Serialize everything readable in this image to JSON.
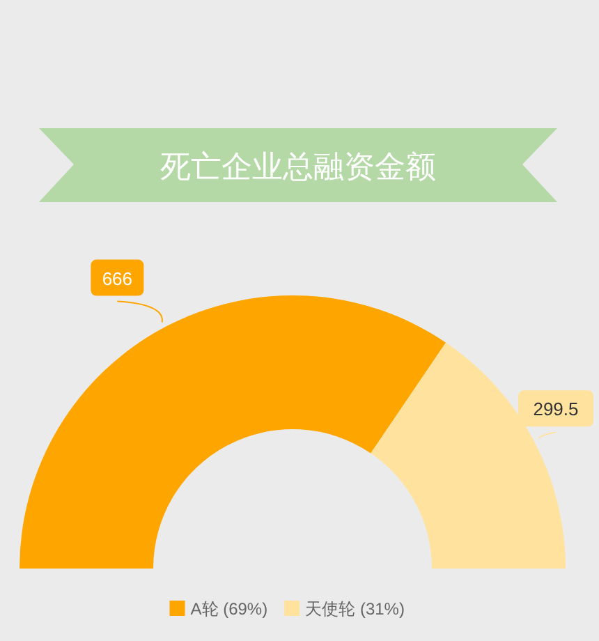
{
  "chart_data": {
    "type": "donut",
    "title": "死亡企业总融资金额",
    "categories": [
      "A轮 (69%)",
      "天使轮 (31%)"
    ],
    "values": [
      666,
      299.5
    ],
    "colors": [
      "#ffa500",
      "#ffe29e"
    ],
    "data_labels": true,
    "legend": "bottom"
  }
}
